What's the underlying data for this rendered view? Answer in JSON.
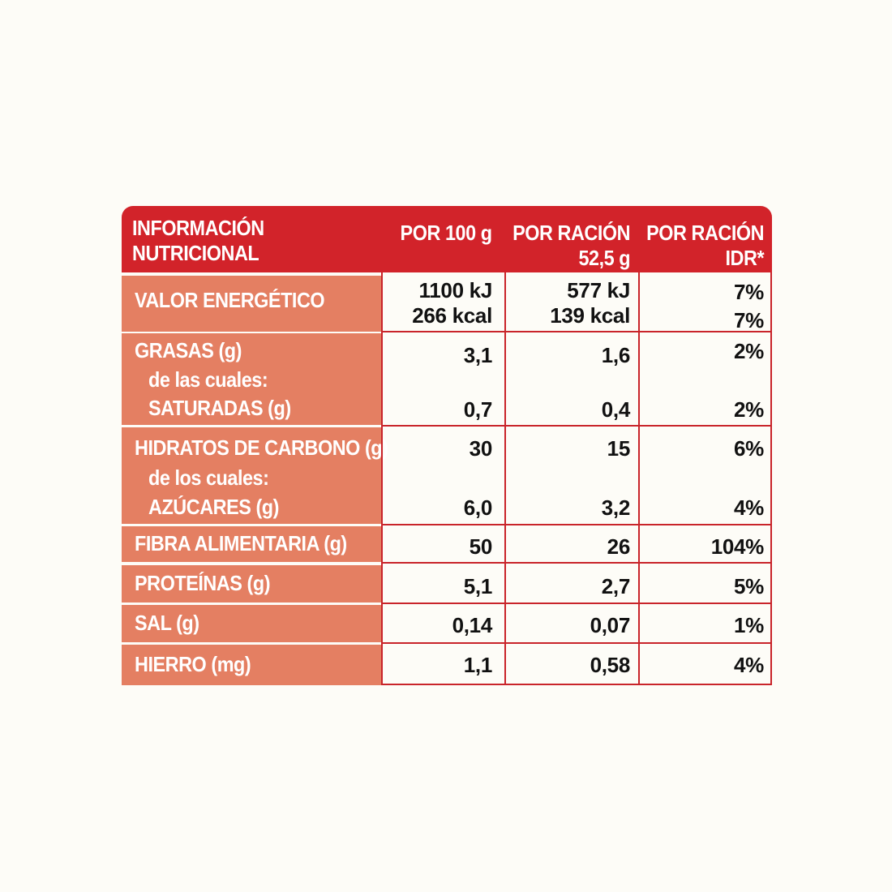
{
  "header": {
    "title_line1": "INFORMACIÓN",
    "title_line2": "NUTRICIONAL",
    "col1": "POR 100 g",
    "col2_line1": "POR RACIÓN",
    "col2_line2": "52,5 g",
    "col3_line1": "POR RACIÓN",
    "col3_line2": "IDR*"
  },
  "rows": {
    "energy": {
      "label": "VALOR ENERGÉTICO",
      "per100_kj": "1100 kJ",
      "per100_kcal": "266 kcal",
      "serving_kj": "577 kJ",
      "serving_kcal": "139 kcal",
      "idr_kj": "7%",
      "idr_kcal": "7%"
    },
    "fat": {
      "label": "GRASAS (g)",
      "sub_intro": "de las cuales:",
      "sub_label": "SATURADAS (g)",
      "per100": "3,1",
      "serving": "1,6",
      "idr": "2%",
      "sub_per100": "0,7",
      "sub_serving": "0,4",
      "sub_idr": "2%"
    },
    "carbs": {
      "label": "HIDRATOS DE CARBONO (g)",
      "sub_intro": "de los cuales:",
      "sub_label": "AZÚCARES (g)",
      "per100": "30",
      "serving": "15",
      "idr": "6%",
      "sub_per100": "6,0",
      "sub_serving": "3,2",
      "sub_idr": "4%"
    },
    "fiber": {
      "label": "FIBRA ALIMENTARIA (g)",
      "per100": "50",
      "serving": "26",
      "idr": "104%"
    },
    "protein": {
      "label": "PROTEÍNAS (g)",
      "per100": "5,1",
      "serving": "2,7",
      "idr": "5%"
    },
    "salt": {
      "label": "SAL (g)",
      "per100": "0,14",
      "serving": "0,07",
      "idr": "1%"
    },
    "iron": {
      "label": "HIERRO (mg)",
      "per100": "1,1",
      "serving": "0,58",
      "idr": "4%"
    }
  },
  "colors": {
    "header_red": "#d2232a",
    "label_salmon": "#e47f62",
    "grid_red": "#c9242a",
    "page_background": "#fdfcf7"
  }
}
